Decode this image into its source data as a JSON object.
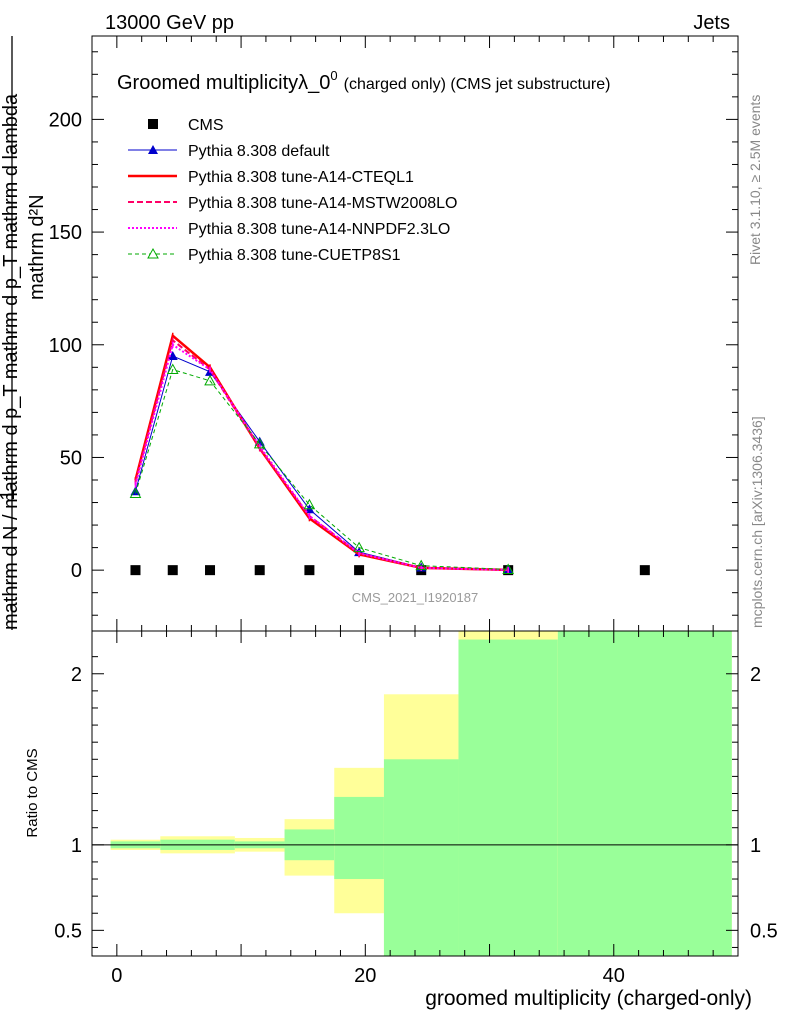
{
  "header": {
    "left": "13000 GeV pp",
    "right": "Jets"
  },
  "side": {
    "rivet": "Rivet 3.1.10, ≥ 2.5M events",
    "mcplots": "mcplots.cern.ch [arXiv:1306.3436]"
  },
  "chart_data": [
    {
      "type": "line",
      "title": "Groomed multiplicityλ_0⁰",
      "title_main": "Groomed multiplicityλ_0",
      "title_sup": "0",
      "title_suffix": "(charged only) (CMS jet substructure)",
      "ylabel_num": "mathrm d²N",
      "ylabel_den": "mathrm d N / mathrm d p_T mathrm d p_T mathrm d lambda",
      "ylabel_one": "1",
      "xlim": [
        -2,
        50
      ],
      "ylim": [
        -27,
        237
      ],
      "yticks": [
        0,
        50,
        100,
        150,
        200
      ],
      "watermark": "CMS_2021_I1920187",
      "legend_position": "top-left",
      "series": [
        {
          "name": "CMS",
          "style": "data",
          "color": "#000000",
          "x": [
            1.5,
            4.5,
            7.5,
            11.5,
            15.5,
            19.5,
            24.5,
            31.5,
            42.5
          ],
          "y": [
            0,
            0,
            0,
            0,
            0,
            0,
            0,
            0,
            0
          ]
        },
        {
          "name": "Pythia 8.308 default",
          "style": "solid-triangle",
          "color": "#0000cc",
          "x": [
            1.5,
            4.5,
            7.5,
            11.5,
            15.5,
            19.5,
            24.5,
            31.5
          ],
          "y": [
            35,
            95,
            88,
            57,
            27,
            8,
            1.2,
            0.2
          ]
        },
        {
          "name": "Pythia 8.308 tune-A14-CTEQL1",
          "style": "solid-thick",
          "color": "#ff0000",
          "x": [
            1.5,
            4.5,
            7.5,
            11.5,
            15.5,
            19.5,
            24.5,
            31.5
          ],
          "y": [
            40,
            104,
            90,
            54,
            23,
            7,
            1.0,
            0.1
          ]
        },
        {
          "name": "Pythia 8.308 tune-A14-MSTW2008LO",
          "style": "dashed",
          "color": "#ff0066",
          "x": [
            1.5,
            4.5,
            7.5,
            11.5,
            15.5,
            19.5,
            24.5,
            31.5
          ],
          "y": [
            39,
            102,
            89,
            54,
            24,
            7.5,
            1.0,
            0.1
          ]
        },
        {
          "name": "Pythia 8.308 tune-A14-NNPDF2.3LO",
          "style": "dotted",
          "color": "#ff00ff",
          "x": [
            1.5,
            4.5,
            7.5,
            11.5,
            15.5,
            19.5,
            24.5,
            31.5
          ],
          "y": [
            38,
            100,
            89,
            55,
            24,
            7.5,
            1.0,
            0.1
          ]
        },
        {
          "name": "Pythia 8.308 tune-CUETP8S1",
          "style": "dashed-open-triangle",
          "color": "#00aa00",
          "x": [
            1.5,
            4.5,
            7.5,
            11.5,
            15.5,
            19.5,
            24.5,
            31.5
          ],
          "y": [
            34,
            89,
            84,
            56,
            29,
            10,
            2.0,
            0.3
          ]
        }
      ]
    },
    {
      "type": "area",
      "ylabel": "Ratio to CMS",
      "xlabel": "groomed multiplicity (charged-only)",
      "xlim": [
        -2,
        50
      ],
      "ylim": [
        0.35,
        2.25
      ],
      "xticks": [
        0,
        20,
        40
      ],
      "yticks": [
        0.5,
        1,
        2
      ],
      "reference_line": 1,
      "bands": [
        {
          "x0": -0.5,
          "x1": 3.5,
          "green": [
            0.98,
            1.02
          ],
          "yellow": [
            0.97,
            1.03
          ]
        },
        {
          "x0": 3.5,
          "x1": 7.5,
          "green": [
            0.97,
            1.03
          ],
          "yellow": [
            0.95,
            1.05
          ]
        },
        {
          "x0": 7.5,
          "x1": 9.5,
          "green": [
            0.97,
            1.03
          ],
          "yellow": [
            0.95,
            1.05
          ]
        },
        {
          "x0": 9.5,
          "x1": 13.5,
          "green": [
            0.98,
            1.02
          ],
          "yellow": [
            0.96,
            1.04
          ]
        },
        {
          "x0": 13.5,
          "x1": 17.5,
          "green": [
            0.91,
            1.09
          ],
          "yellow": [
            0.82,
            1.15
          ]
        },
        {
          "x0": 17.5,
          "x1": 21.5,
          "green": [
            0.8,
            1.28
          ],
          "yellow": [
            0.6,
            1.45
          ]
        },
        {
          "x0": 21.5,
          "x1": 27.5,
          "green": [
            0.35,
            1.5
          ],
          "yellow": [
            0.35,
            1.88
          ]
        },
        {
          "x0": 27.5,
          "x1": 35.5,
          "green": [
            0.35,
            2.2
          ],
          "yellow": [
            0.35,
            2.25
          ]
        },
        {
          "x0": 35.5,
          "x1": 49.5,
          "green": [
            0.35,
            2.25
          ],
          "yellow": [
            0.35,
            2.25
          ]
        }
      ]
    }
  ]
}
